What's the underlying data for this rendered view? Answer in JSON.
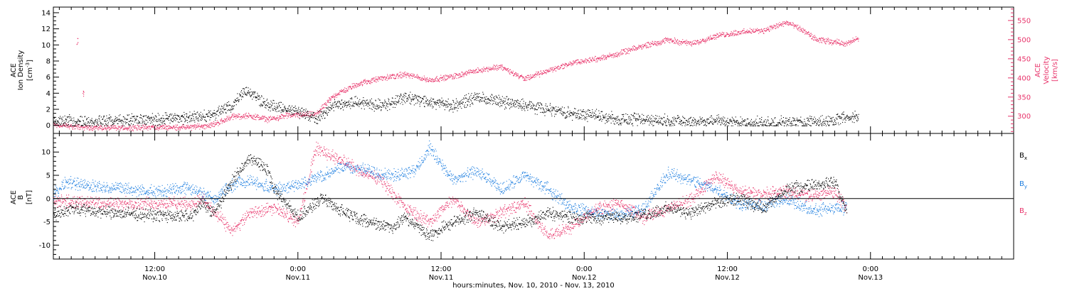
{
  "colors": {
    "density": "#000000",
    "velocity": "#e8336a",
    "bx": "#000000",
    "by": "#1f7fe0",
    "bz": "#e8336a",
    "axis": "#000000"
  },
  "x_axis": {
    "title": "hours:minutes, Nov. 10, 2010 - Nov. 13, 2010",
    "tick_times": [
      "12:00",
      "0:00",
      "12:00",
      "0:00",
      "12:00",
      "0:00"
    ],
    "tick_dates": [
      "Nov.10",
      "Nov.11",
      "Nov.11",
      "Nov.12",
      "Nov.12",
      "Nov.13"
    ]
  },
  "panel_top": {
    "left_label": [
      "ACE",
      "Ion Density",
      "[cm"
    ],
    "left_label_sup": "-3",
    "left_label_end": "]",
    "right_label": [
      "ACE",
      "Velocity",
      "[km/s]"
    ]
  },
  "panel_bottom": {
    "left_label": [
      "ACE",
      "B",
      "[nT]"
    ],
    "legend": [
      {
        "base": "B",
        "sub": "x"
      },
      {
        "base": "B",
        "sub": "y"
      },
      {
        "base": "B",
        "sub": "z"
      }
    ]
  },
  "chart_data": [
    {
      "type": "scatter",
      "name": "ACE ion density and velocity",
      "x_unit": "hours since 2010-11-10 00:00 UT",
      "xlim": [
        3.5,
        84
      ],
      "x_ticks": [
        12,
        24,
        36,
        48,
        60,
        72
      ],
      "ylim_left": [
        -1,
        14.7
      ],
      "y_ticks_left": [
        0,
        2,
        4,
        6,
        8,
        10,
        12,
        14
      ],
      "ylim_right": [
        255,
        585
      ],
      "y_ticks_right": [
        300,
        350,
        400,
        450,
        500,
        550
      ],
      "series": [
        {
          "name": "Ion Density",
          "axis": "left",
          "color_key": "density",
          "x": [
            3.5,
            6,
            9,
            12,
            15,
            17,
            18.5,
            19.5,
            20.5,
            21.5,
            23,
            24.5,
            25.5,
            27,
            29,
            31,
            33,
            35,
            37,
            39,
            41,
            43,
            45,
            47,
            49,
            51,
            53,
            55,
            57,
            59,
            61,
            63,
            65,
            67,
            68.5,
            70,
            71
          ],
          "y": [
            0.5,
            0.5,
            0.6,
            0.8,
            1.0,
            1.4,
            2.5,
            4.5,
            3.5,
            2.5,
            2.0,
            1.6,
            0.8,
            2.5,
            3.0,
            2.5,
            3.5,
            3.0,
            2.5,
            3.5,
            3.0,
            2.5,
            2.0,
            1.5,
            1.3,
            0.8,
            0.7,
            0.6,
            0.5,
            0.6,
            0.4,
            0.3,
            0.4,
            0.5,
            0.5,
            1.2,
            1.0
          ]
        },
        {
          "name": "Velocity",
          "axis": "right",
          "color_key": "velocity",
          "x": [
            3.5,
            6,
            9,
            12,
            15,
            16,
            17,
            18.5,
            20,
            21.5,
            23,
            24.5,
            25.5,
            27,
            29,
            31,
            33,
            35,
            37,
            39,
            41,
            43,
            45,
            47,
            49,
            51,
            53,
            55,
            57,
            59,
            61,
            63,
            65,
            66,
            67.5,
            69,
            70,
            71
          ],
          "y": [
            278,
            272,
            270,
            272,
            272,
            275,
            280,
            300,
            302,
            292,
            302,
            305,
            305,
            355,
            385,
            400,
            410,
            395,
            405,
            420,
            430,
            398,
            420,
            440,
            450,
            465,
            485,
            500,
            490,
            510,
            520,
            525,
            545,
            530,
            500,
            495,
            490,
            505
          ]
        }
      ],
      "isolated_points": [
        {
          "series": "Velocity",
          "x": 5.5,
          "y": 495
        },
        {
          "series": "Velocity",
          "x": 6.0,
          "y": 360
        }
      ]
    },
    {
      "type": "scatter",
      "name": "ACE magnetic field components",
      "x_unit": "hours since 2010-11-10 00:00 UT",
      "xlim": [
        3.5,
        84
      ],
      "x_ticks": [
        12,
        24,
        36,
        48,
        60,
        72
      ],
      "ylim": [
        -13,
        14
      ],
      "y_ticks": [
        -10,
        -5,
        0,
        5,
        10
      ],
      "zero_line": true,
      "series": [
        {
          "name": "Bx",
          "color_key": "bx",
          "x": [
            3.5,
            5,
            8,
            12,
            15,
            16,
            17,
            18.5,
            20,
            21.5,
            22,
            24,
            26,
            28,
            30,
            32,
            33,
            35,
            37,
            39,
            41,
            43,
            45,
            47,
            49,
            51,
            53,
            55,
            57,
            59,
            61,
            63,
            65,
            67,
            69,
            70
          ],
          "y": [
            -3.5,
            -2.0,
            -3.0,
            -3.5,
            -3.8,
            -1.0,
            -3.0,
            4.0,
            9.0,
            6.0,
            2.0,
            -4.0,
            0.0,
            -3.0,
            -5.0,
            -6.0,
            -4.0,
            -8.0,
            -5.0,
            -3.0,
            -6.0,
            -5.0,
            -3.0,
            -4.0,
            -4.0,
            -4.0,
            -3.5,
            -2.0,
            -3.0,
            -1.0,
            0.0,
            -2.0,
            2.0,
            3.0,
            3.5,
            -3.0
          ]
        },
        {
          "name": "By",
          "color_key": "by",
          "x": [
            3.5,
            4.5,
            8,
            12,
            15,
            16,
            17,
            18.5,
            20,
            22,
            24,
            26,
            28,
            30,
            32,
            34,
            35,
            37,
            39,
            41,
            43,
            45,
            47,
            49,
            51,
            53,
            55,
            57,
            59,
            61,
            63,
            65,
            67,
            69,
            70
          ],
          "y": [
            1.0,
            3.5,
            2.5,
            1.5,
            2.5,
            1.0,
            0.0,
            3.0,
            4.0,
            2.0,
            3.0,
            5.0,
            7.0,
            6.0,
            5.0,
            6.5,
            11.0,
            4.0,
            6.0,
            2.0,
            5.0,
            2.0,
            -2.0,
            -3.0,
            -3.5,
            -2.0,
            5.5,
            4.0,
            2.0,
            -1.0,
            -1.5,
            0.0,
            -2.5,
            -2.0,
            -2.0
          ]
        },
        {
          "name": "Bz",
          "color_key": "bz",
          "x": [
            3.5,
            8,
            12,
            15,
            16,
            17,
            18.5,
            20,
            22,
            24,
            25.5,
            27,
            28,
            29,
            31,
            33,
            35,
            37,
            39,
            41,
            43,
            45,
            47,
            49,
            51,
            53,
            55,
            57,
            59,
            61,
            63,
            65,
            67,
            69,
            70
          ],
          "y": [
            -0.5,
            -1.0,
            -1.0,
            -1.0,
            0.0,
            -3.0,
            -7.0,
            -3.0,
            -2.0,
            -5.0,
            11.0,
            9.0,
            8.0,
            6.0,
            4.0,
            -2.0,
            -5.0,
            0.0,
            -5.0,
            -3.0,
            -1.0,
            -8.0,
            -6.0,
            -2.0,
            -1.0,
            -4.0,
            -2.0,
            0.0,
            5.0,
            1.5,
            1.0,
            1.5,
            0.5,
            1.5,
            -2.0
          ]
        }
      ]
    }
  ]
}
